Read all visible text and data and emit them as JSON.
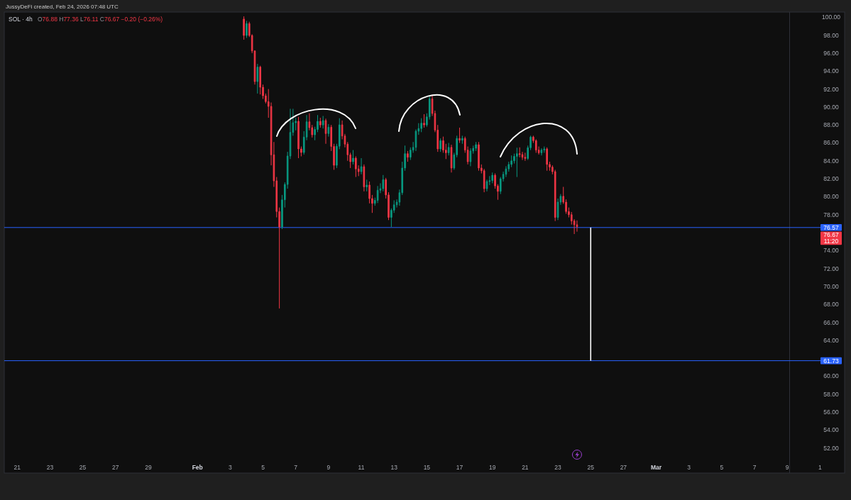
{
  "chart_data": {
    "type": "candlestick",
    "title": "SOL · 4h",
    "subtitle": "O76.88 H77.36 L76.11 C76.67 −0.20 (−0.26%)",
    "x": [
      "2026-02-03T20:00",
      "2026-02-04T00:00",
      "2026-02-04T04:00",
      "2026-02-04T08:00",
      "2026-02-04T12:00",
      "2026-02-04T16:00",
      "2026-02-04T20:00",
      "2026-02-05T00:00",
      "2026-02-05T04:00",
      "2026-02-05T08:00",
      "2026-02-05T12:00",
      "2026-02-05T16:00",
      "2026-02-05T20:00",
      "2026-02-06T00:00",
      "2026-02-06T04:00",
      "2026-02-06T08:00",
      "2026-02-06T12:00",
      "2026-02-06T16:00",
      "2026-02-06T20:00",
      "2026-02-07T00:00",
      "2026-02-07T04:00",
      "2026-02-07T08:00",
      "2026-02-07T12:00",
      "2026-02-07T16:00",
      "2026-02-07T20:00",
      "2026-02-08T00:00",
      "2026-02-08T04:00",
      "2026-02-08T08:00",
      "2026-02-08T12:00",
      "2026-02-08T16:00",
      "2026-02-08T20:00",
      "2026-02-09T00:00",
      "2026-02-09T04:00",
      "2026-02-09T08:00",
      "2026-02-09T12:00",
      "2026-02-09T16:00",
      "2026-02-09T20:00",
      "2026-02-10T00:00",
      "2026-02-10T04:00",
      "2026-02-10T08:00",
      "2026-02-10T12:00",
      "2026-02-10T16:00",
      "2026-02-10T20:00",
      "2026-02-11T00:00",
      "2026-02-11T04:00",
      "2026-02-11T08:00",
      "2026-02-11T12:00",
      "2026-02-11T16:00",
      "2026-02-11T20:00",
      "2026-02-12T00:00",
      "2026-02-12T04:00",
      "2026-02-12T08:00",
      "2026-02-12T12:00",
      "2026-02-12T16:00",
      "2026-02-12T20:00",
      "2026-02-13T00:00",
      "2026-02-13T04:00",
      "2026-02-13T08:00",
      "2026-02-13T12:00",
      "2026-02-13T16:00",
      "2026-02-13T20:00",
      "2026-02-14T00:00",
      "2026-02-14T04:00",
      "2026-02-14T08:00",
      "2026-02-14T12:00",
      "2026-02-14T16:00",
      "2026-02-14T20:00",
      "2026-02-15T00:00",
      "2026-02-15T04:00",
      "2026-02-15T08:00",
      "2026-02-15T12:00",
      "2026-02-15T16:00",
      "2026-02-15T20:00",
      "2026-02-16T00:00",
      "2026-02-16T04:00",
      "2026-02-16T08:00",
      "2026-02-16T12:00",
      "2026-02-16T16:00",
      "2026-02-16T20:00",
      "2026-02-17T00:00",
      "2026-02-17T04:00",
      "2026-02-17T08:00",
      "2026-02-17T12:00",
      "2026-02-17T16:00",
      "2026-02-17T20:00",
      "2026-02-18T00:00",
      "2026-02-18T04:00",
      "2026-02-18T08:00",
      "2026-02-18T12:00",
      "2026-02-18T16:00",
      "2026-02-18T20:00",
      "2026-02-19T00:00",
      "2026-02-19T04:00",
      "2026-02-19T08:00",
      "2026-02-19T12:00",
      "2026-02-19T16:00",
      "2026-02-19T20:00",
      "2026-02-20T00:00",
      "2026-02-20T04:00",
      "2026-02-20T08:00",
      "2026-02-20T12:00",
      "2026-02-20T16:00",
      "2026-02-20T20:00",
      "2026-02-21T00:00",
      "2026-02-21T04:00",
      "2026-02-21T08:00",
      "2026-02-21T12:00",
      "2026-02-21T16:00",
      "2026-02-21T20:00",
      "2026-02-22T00:00",
      "2026-02-22T04:00",
      "2026-02-22T08:00",
      "2026-02-22T12:00",
      "2026-02-22T16:00",
      "2026-02-22T20:00",
      "2026-02-23T00:00",
      "2026-02-23T04:00",
      "2026-02-23T08:00",
      "2026-02-23T12:00",
      "2026-02-23T16:00",
      "2026-02-23T20:00",
      "2026-02-24T00:00",
      "2026-02-24T04:00"
    ],
    "ohlc": [
      [
        99.8,
        100.1,
        97.5,
        97.97
      ],
      [
        97.97,
        99.6,
        97.7,
        99.3
      ],
      [
        99.3,
        99.5,
        97.8,
        97.97
      ],
      [
        97.97,
        98.1,
        96.0,
        96.25
      ],
      [
        96.25,
        96.3,
        92.5,
        92.83
      ],
      [
        92.83,
        94.8,
        91.5,
        94.45
      ],
      [
        94.45,
        94.6,
        91.4,
        92.2
      ],
      [
        92.2,
        92.5,
        90.9,
        91.25
      ],
      [
        91.25,
        91.5,
        90.4,
        90.6
      ],
      [
        90.6,
        92.0,
        88.8,
        90.07
      ],
      [
        90.07,
        90.5,
        83.5,
        84.67
      ],
      [
        84.67,
        86.1,
        81.1,
        81.77
      ],
      [
        81.77,
        82.2,
        77.7,
        78.35
      ],
      [
        78.35,
        78.8,
        67.55,
        76.63
      ],
      [
        76.63,
        80.2,
        76.4,
        79.66
      ],
      [
        79.66,
        81.6,
        78.8,
        81.37
      ],
      [
        81.37,
        85.0,
        80.9,
        84.54
      ],
      [
        84.54,
        89.8,
        84.2,
        87.17
      ],
      [
        87.17,
        89.8,
        86.8,
        88.25
      ],
      [
        88.25,
        88.8,
        87.4,
        88.4
      ],
      [
        88.4,
        88.9,
        84.3,
        85.33
      ],
      [
        85.33,
        85.6,
        84.5,
        84.93
      ],
      [
        84.93,
        87.3,
        84.7,
        86.65
      ],
      [
        86.65,
        89.1,
        86.3,
        88.35
      ],
      [
        88.35,
        89.3,
        87.4,
        87.7
      ],
      [
        87.7,
        88.0,
        86.6,
        86.9
      ],
      [
        86.9,
        87.8,
        86.3,
        87.5
      ],
      [
        87.5,
        89.1,
        87.2,
        88.4
      ],
      [
        88.4,
        88.8,
        87.7,
        88.0
      ],
      [
        88.0,
        89.0,
        87.6,
        88.49
      ],
      [
        88.49,
        88.7,
        85.9,
        87.04
      ],
      [
        87.04,
        88.1,
        86.7,
        87.75
      ],
      [
        87.75,
        88.0,
        85.1,
        85.6
      ],
      [
        85.6,
        85.9,
        83.0,
        83.5
      ],
      [
        83.5,
        85.9,
        83.2,
        85.63
      ],
      [
        85.63,
        88.75,
        85.3,
        88.01
      ],
      [
        88.01,
        88.5,
        86.4,
        86.77
      ],
      [
        86.77,
        87.0,
        85.5,
        85.86
      ],
      [
        85.86,
        86.1,
        84.0,
        84.67
      ],
      [
        84.67,
        84.9,
        83.2,
        83.9
      ],
      [
        83.9,
        85.2,
        83.6,
        84.3
      ],
      [
        84.3,
        84.5,
        82.2,
        83.1
      ],
      [
        83.1,
        83.5,
        82.3,
        82.8
      ],
      [
        82.8,
        84.3,
        82.5,
        83.35
      ],
      [
        83.35,
        83.6,
        80.6,
        81.1
      ],
      [
        81.1,
        81.9,
        80.6,
        81.3
      ],
      [
        81.3,
        81.7,
        79.26,
        79.8
      ],
      [
        79.8,
        80.2,
        78.2,
        79.26
      ],
      [
        79.26,
        79.9,
        79.0,
        79.6
      ],
      [
        79.6,
        81.2,
        79.3,
        80.72
      ],
      [
        80.72,
        81.5,
        80.4,
        80.9
      ],
      [
        80.9,
        82.42,
        80.6,
        81.9
      ],
      [
        81.9,
        82.1,
        79.8,
        80.2
      ],
      [
        80.2,
        80.5,
        77.4,
        77.7
      ],
      [
        77.7,
        78.7,
        76.63,
        78.5
      ],
      [
        78.5,
        79.6,
        78.2,
        79.1
      ],
      [
        79.1,
        79.7,
        78.8,
        79.4
      ],
      [
        79.4,
        80.8,
        79.0,
        80.45
      ],
      [
        80.45,
        83.9,
        80.2,
        83.2
      ],
      [
        83.2,
        85.7,
        82.9,
        84.8
      ],
      [
        84.8,
        85.1,
        83.9,
        84.4
      ],
      [
        84.4,
        85.5,
        84.1,
        85.2
      ],
      [
        85.2,
        86.1,
        84.9,
        85.5
      ],
      [
        85.5,
        87.5,
        85.1,
        87.3
      ],
      [
        87.3,
        88.2,
        86.9,
        87.6
      ],
      [
        87.6,
        88.75,
        87.2,
        88.2
      ],
      [
        88.2,
        89.2,
        87.7,
        88.0
      ],
      [
        88.0,
        89.3,
        87.8,
        88.9
      ],
      [
        88.9,
        91.2,
        88.6,
        90.9
      ],
      [
        90.9,
        91.33,
        89.0,
        89.28
      ],
      [
        89.28,
        89.6,
        87.2,
        87.43
      ],
      [
        87.43,
        88.0,
        85.0,
        85.33
      ],
      [
        85.33,
        86.5,
        85.0,
        86.25
      ],
      [
        86.25,
        86.7,
        84.9,
        85.2
      ],
      [
        85.2,
        85.9,
        84.2,
        84.9
      ],
      [
        84.9,
        86.0,
        84.6,
        85.5
      ],
      [
        85.5,
        85.8,
        82.7,
        83.2
      ],
      [
        83.2,
        84.9,
        83.0,
        84.67
      ],
      [
        84.67,
        86.8,
        84.4,
        86.5
      ],
      [
        86.5,
        87.7,
        86.0,
        86.3
      ],
      [
        86.3,
        86.8,
        85.9,
        86.5
      ],
      [
        86.5,
        86.7,
        84.9,
        85.2
      ],
      [
        85.2,
        85.6,
        83.6,
        83.9
      ],
      [
        83.9,
        85.4,
        83.4,
        85.1
      ],
      [
        85.1,
        85.7,
        84.8,
        85.4
      ],
      [
        85.4,
        86.1,
        85.1,
        85.8
      ],
      [
        85.8,
        86.1,
        82.9,
        83.2
      ],
      [
        83.2,
        83.6,
        82.6,
        82.9
      ],
      [
        82.9,
        83.1,
        80.5,
        80.9
      ],
      [
        80.9,
        81.9,
        80.6,
        81.7
      ],
      [
        81.7,
        82.3,
        81.3,
        81.8
      ],
      [
        81.8,
        82.7,
        81.5,
        82.4
      ],
      [
        82.4,
        82.6,
        80.9,
        81.2
      ],
      [
        81.2,
        81.4,
        79.66,
        80.6
      ],
      [
        80.6,
        82.2,
        80.3,
        82.0
      ],
      [
        82.0,
        82.8,
        81.7,
        82.5
      ],
      [
        82.5,
        83.4,
        82.2,
        83.1
      ],
      [
        83.1,
        83.9,
        82.8,
        83.6
      ],
      [
        83.6,
        84.6,
        83.3,
        84.0
      ],
      [
        84.0,
        84.8,
        83.7,
        84.5
      ],
      [
        84.5,
        85.46,
        82.2,
        84.8
      ],
      [
        84.8,
        85.5,
        84.4,
        84.7
      ],
      [
        84.7,
        85.0,
        84.1,
        84.4
      ],
      [
        84.4,
        84.9,
        84.0,
        84.27
      ],
      [
        84.27,
        85.7,
        84.1,
        85.46
      ],
      [
        85.46,
        86.8,
        85.2,
        86.65
      ],
      [
        86.65,
        86.8,
        86.0,
        86.25
      ],
      [
        86.25,
        86.4,
        84.9,
        85.2
      ],
      [
        85.2,
        85.6,
        84.7,
        84.9
      ],
      [
        84.9,
        85.4,
        84.6,
        85.2
      ],
      [
        85.2,
        85.6,
        84.9,
        85.33
      ],
      [
        85.33,
        85.5,
        82.9,
        83.6
      ],
      [
        83.6,
        83.9,
        82.9,
        83.3
      ],
      [
        83.3,
        83.5,
        82.5,
        82.8
      ],
      [
        82.8,
        83.0,
        77.29,
        77.7
      ],
      [
        77.7,
        79.8,
        77.4,
        79.4
      ],
      [
        79.4,
        80.3,
        79.1,
        80.05
      ],
      [
        80.05,
        81.1,
        79.2,
        79.4
      ],
      [
        79.4,
        79.7,
        78.1,
        78.35
      ],
      [
        78.35,
        78.8,
        77.7,
        78.0
      ],
      [
        78.0,
        78.3,
        76.9,
        77.3
      ],
      [
        77.3,
        77.5,
        75.84,
        76.88
      ],
      [
        76.88,
        77.36,
        76.11,
        76.67
      ]
    ],
    "colors": [
      "#f23645",
      "#089981",
      "#f23645",
      "#f23645",
      "#f23645",
      "#089981",
      "#f23645",
      "#f23645",
      "#f23645",
      "#f23645",
      "#f23645",
      "#f23645",
      "#f23645",
      "#f23645",
      "#089981",
      "#089981",
      "#089981",
      "#089981",
      "#089981",
      "#089981",
      "#f23645",
      "#f23645",
      "#089981",
      "#089981",
      "#f23645",
      "#f23645",
      "#089981",
      "#089981",
      "#f23645",
      "#089981",
      "#f23645",
      "#089981",
      "#f23645",
      "#f23645",
      "#089981",
      "#089981",
      "#f23645",
      "#f23645",
      "#f23645",
      "#f23645",
      "#089981",
      "#f23645",
      "#f23645",
      "#089981",
      "#f23645",
      "#089981",
      "#f23645",
      "#f23645",
      "#089981",
      "#089981",
      "#089981",
      "#089981",
      "#f23645",
      "#f23645",
      "#089981",
      "#089981",
      "#089981",
      "#089981",
      "#089981",
      "#089981",
      "#f23645",
      "#089981",
      "#089981",
      "#089981",
      "#089981",
      "#089981",
      "#f23645",
      "#089981",
      "#089981",
      "#f23645",
      "#f23645",
      "#f23645",
      "#089981",
      "#f23645",
      "#f23645",
      "#089981",
      "#f23645",
      "#089981",
      "#089981",
      "#f23645",
      "#089981",
      "#f23645",
      "#f23645",
      "#089981",
      "#089981",
      "#089981",
      "#f23645",
      "#f23645",
      "#f23645",
      "#089981",
      "#089981",
      "#089981",
      "#f23645",
      "#f23645",
      "#089981",
      "#089981",
      "#089981",
      "#089981",
      "#089981",
      "#089981",
      "#089981",
      "#f23645",
      "#f23645",
      "#f23645",
      "#089981",
      "#089981",
      "#f23645",
      "#f23645",
      "#f23645",
      "#089981",
      "#089981",
      "#f23645",
      "#f23645",
      "#f23645",
      "#f23645",
      "#089981",
      "#089981",
      "#f23645",
      "#f23645",
      "#f23645",
      "#f23645",
      "#f23645",
      "#f23645"
    ],
    "xlim": [
      "2026-01-20T05:00",
      "2026-03-12T12:00"
    ],
    "xticks": [
      {
        "value": "2026-01-21",
        "label": "21"
      },
      {
        "value": "2026-01-23",
        "label": "23"
      },
      {
        "value": "2026-01-25",
        "label": "25"
      },
      {
        "value": "2026-01-27",
        "label": "27"
      },
      {
        "value": "2026-01-29",
        "label": "29"
      },
      {
        "value": "2026-02-01",
        "label": "Feb"
      },
      {
        "value": "2026-02-03",
        "label": "3"
      },
      {
        "value": "2026-02-05",
        "label": "5"
      },
      {
        "value": "2026-02-07",
        "label": "7"
      },
      {
        "value": "2026-02-09",
        "label": "9"
      },
      {
        "value": "2026-02-11",
        "label": "11"
      },
      {
        "value": "2026-02-13",
        "label": "13"
      },
      {
        "value": "2026-02-15",
        "label": "15"
      },
      {
        "value": "2026-02-17",
        "label": "17"
      },
      {
        "value": "2026-02-19",
        "label": "19"
      },
      {
        "value": "2026-02-21",
        "label": "21"
      },
      {
        "value": "2026-02-23",
        "label": "23"
      },
      {
        "value": "2026-02-25",
        "label": "25"
      },
      {
        "value": "2026-02-27",
        "label": "27"
      },
      {
        "value": "2026-03-01",
        "label": "Mar"
      },
      {
        "value": "2026-03-03",
        "label": "3"
      },
      {
        "value": "2026-03-05",
        "label": "5"
      },
      {
        "value": "2026-03-07",
        "label": "7"
      },
      {
        "value": "2026-03-09",
        "label": "9"
      },
      {
        "value": "2026-03-11",
        "label": "1"
      }
    ],
    "ylim": [
      49.21,
      100.58
    ],
    "yticks": [
      {
        "value": 52,
        "label": "52.00"
      },
      {
        "value": 54,
        "label": "54.00"
      },
      {
        "value": 56,
        "label": "56.00"
      },
      {
        "value": 58,
        "label": "58.00"
      },
      {
        "value": 60,
        "label": "60.00"
      },
      {
        "value": 64,
        "label": "64.00"
      },
      {
        "value": 66,
        "label": "66.00"
      },
      {
        "value": 68,
        "label": "68.00"
      },
      {
        "value": 70,
        "label": "70.00"
      },
      {
        "value": 72,
        "label": "72.00"
      },
      {
        "value": 74,
        "label": "74.00"
      },
      {
        "value": 78,
        "label": "78.00"
      },
      {
        "value": 80,
        "label": "80.00"
      },
      {
        "value": 82,
        "label": "82.00"
      },
      {
        "value": 84,
        "label": "84.00"
      },
      {
        "value": 86,
        "label": "86.00"
      },
      {
        "value": 88,
        "label": "88.00"
      },
      {
        "value": 90,
        "label": "90.00"
      },
      {
        "value": 92,
        "label": "92.00"
      },
      {
        "value": 94,
        "label": "94.00"
      },
      {
        "value": 96,
        "label": "96.00"
      },
      {
        "value": 98,
        "label": "98.00"
      },
      {
        "value": 100,
        "label": "100.00"
      }
    ],
    "ref_lines": [
      {
        "axis": "y",
        "value": 76.57,
        "label": "76.57",
        "color": "#2962ff"
      },
      {
        "axis": "y",
        "value": 61.73,
        "label": "61.73",
        "color": "#2962ff"
      }
    ],
    "annotations": [
      "JussyDeFi created, Feb 24, 2026 07:48 UTC",
      "76.67",
      "11:20"
    ]
  }
}
